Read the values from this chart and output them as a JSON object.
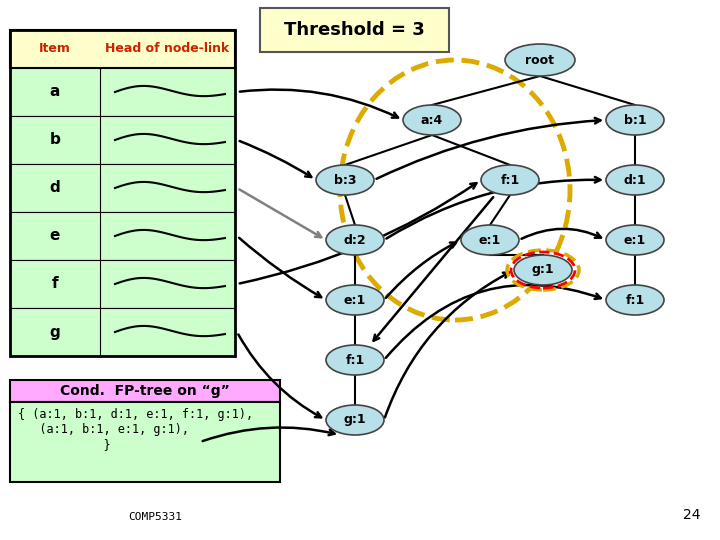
{
  "title": "Threshold = 3",
  "table_items": [
    "a",
    "b",
    "d",
    "e",
    "f",
    "g"
  ],
  "node_color": "#b8e0e8",
  "cond_title_bg": "#ffaaff",
  "cond_body_bg": "#ccffcc",
  "table_bg": "#ccffcc",
  "table_header_bg": "#ffffcc",
  "threshold_bg": "#ffffcc",
  "footer": "COMP5331",
  "page": "24"
}
